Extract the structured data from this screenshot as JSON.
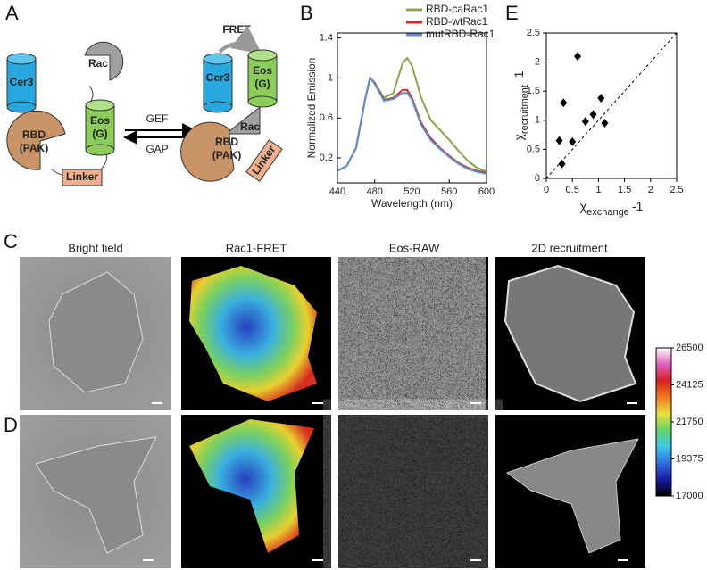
{
  "panel_labels": {
    "a": "A",
    "b": "B",
    "c": "C",
    "d": "D",
    "e": "E"
  },
  "diagram": {
    "left": {
      "cer3": "Cer3",
      "rac": "Rac",
      "eos": [
        "Eos",
        "(G)"
      ],
      "rbd": [
        "RBD",
        "(PAK)"
      ],
      "linker": "Linker"
    },
    "arrows": {
      "forward": "GEF",
      "back": "GAP"
    },
    "right": {
      "fret": "FRET",
      "cer3": "Cer3",
      "eos": [
        "Eos",
        "(G)"
      ],
      "rac": "Rac",
      "rbd": [
        "RBD",
        "(PAK)"
      ],
      "linker": "Linker"
    }
  },
  "image_grid": {
    "columns": [
      "Bright field",
      "Rac1-FRET",
      "Eos-RAW",
      "2D recruitment"
    ]
  },
  "chart_data": [
    {
      "type": "line",
      "xlabel": "Wavelength (nm)",
      "ylabel": "Normalized Emission",
      "x": [
        440,
        450,
        460,
        470,
        475,
        480,
        490,
        500,
        510,
        515,
        520,
        530,
        540,
        550,
        560,
        570,
        580,
        590,
        600
      ],
      "series": [
        {
          "name": "RBD-caRac1",
          "color": "#8aa64a",
          "values": [
            0.07,
            0.12,
            0.3,
            0.8,
            1.0,
            0.95,
            0.8,
            0.85,
            1.15,
            1.2,
            1.12,
            0.8,
            0.58,
            0.48,
            0.38,
            0.27,
            0.17,
            0.1,
            0.06
          ]
        },
        {
          "name": "RBD-wtRac1",
          "color": "#c4302e",
          "values": [
            0.07,
            0.12,
            0.3,
            0.8,
            1.0,
            0.95,
            0.78,
            0.8,
            0.88,
            0.88,
            0.8,
            0.55,
            0.4,
            0.3,
            0.22,
            0.15,
            0.1,
            0.07,
            0.05
          ]
        },
        {
          "name": "mutRBD-Rac1",
          "color": "#5b8fd0",
          "values": [
            0.07,
            0.12,
            0.3,
            0.8,
            1.0,
            0.94,
            0.77,
            0.79,
            0.85,
            0.85,
            0.78,
            0.53,
            0.38,
            0.29,
            0.21,
            0.14,
            0.09,
            0.06,
            0.04
          ]
        }
      ],
      "xlim": [
        440,
        600
      ],
      "xticks": [
        440,
        480,
        520,
        560,
        600
      ],
      "ylim": [
        -0.05,
        1.45
      ],
      "yticks": [
        0.2,
        0.6,
        1,
        1.4
      ],
      "legend": "upper right"
    },
    {
      "type": "scatter",
      "color": "#000000",
      "xlabel": {
        "symbol": "χ",
        "subscript": "exchange",
        "suffix": "-1"
      },
      "ylabel": {
        "symbol": "χ",
        "subscript": "recruitment",
        "suffix": "-1"
      },
      "x": [
        0.25,
        0.3,
        0.33,
        0.5,
        0.6,
        0.75,
        0.9,
        1.05,
        1.12
      ],
      "y": [
        0.65,
        0.25,
        1.3,
        0.63,
        2.1,
        0.98,
        1.1,
        1.38,
        0.95
      ],
      "xlim": [
        0,
        2.5
      ],
      "xticks": [
        0,
        0.5,
        1,
        1.5,
        2,
        2.5
      ],
      "ylim": [
        0,
        2.5
      ],
      "yticks": [
        0,
        0.5,
        1,
        1.5,
        2,
        2.5
      ],
      "identity_line": true
    },
    {
      "type": "colorbar",
      "ylim": [
        17000,
        26500
      ],
      "yticks": [
        17000,
        19375,
        21750,
        24125,
        26500
      ],
      "colors": [
        "#000000",
        "#1a1aa0",
        "#2f6fe0",
        "#3fc8e8",
        "#66d26a",
        "#e8e040",
        "#f07a20",
        "#d81e1e",
        "#e060c0",
        "#ffffff"
      ]
    }
  ]
}
